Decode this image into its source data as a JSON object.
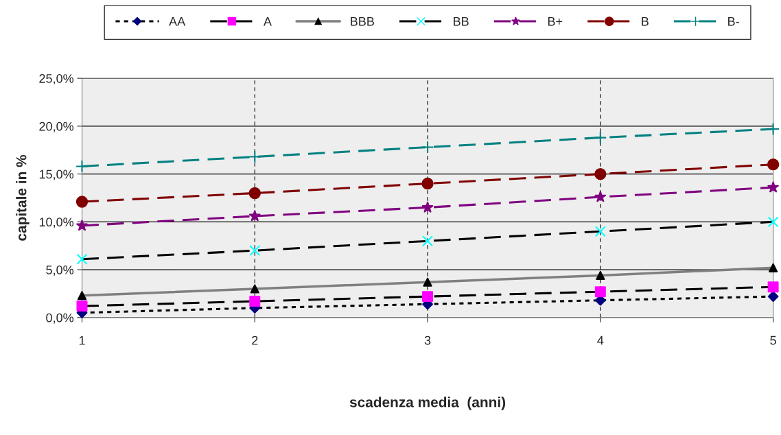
{
  "chart_data": {
    "type": "line",
    "xlabel": "scadenza media  (anni)",
    "ylabel": "capitale in %",
    "x": [
      1,
      2,
      3,
      4,
      5
    ],
    "xlim": [
      1,
      5
    ],
    "xticks": [
      1,
      2,
      3,
      4,
      5
    ],
    "ylim": [
      0,
      25
    ],
    "yticks": [
      {
        "value": 0,
        "label": "0,0%"
      },
      {
        "value": 5,
        "label": "5,0%"
      },
      {
        "value": 10,
        "label": "10,0%"
      },
      {
        "value": 15,
        "label": "15,0%"
      },
      {
        "value": 20,
        "label": "20,0%"
      },
      {
        "value": 25,
        "label": "25,0%"
      }
    ],
    "grid": true,
    "legend": "top",
    "series": [
      {
        "name": "AA",
        "color": "#000000",
        "colors": [
          "#000080",
          "#000080",
          "#000080",
          "#000080",
          "#000080"
        ],
        "marker": "diamond",
        "line_style": "dotted",
        "values": [
          0.5,
          1.0,
          1.4,
          1.8,
          2.2
        ]
      },
      {
        "name": "A",
        "color": "#000000",
        "colors": [
          "#ff00ff",
          "#ff00ff",
          "#ff00ff",
          "#ff00ff",
          "#ff00ff"
        ],
        "marker": "square",
        "line_style": "dashed",
        "values": [
          1.2,
          1.7,
          2.2,
          2.7,
          3.2
        ]
      },
      {
        "name": "BBB",
        "color": "#808080",
        "colors": [
          "#000000",
          "#000000",
          "#000000",
          "#000000",
          "#000000"
        ],
        "marker": "triangle",
        "line_style": "solid",
        "values": [
          2.3,
          3.0,
          3.7,
          4.4,
          5.2
        ]
      },
      {
        "name": "BB",
        "color": "#000000",
        "colors": [
          "#00ffff",
          "#00ffff",
          "#00ffff",
          "#00ffff",
          "#00ffff"
        ],
        "marker": "cross",
        "line_style": "dashed",
        "values": [
          6.1,
          7.0,
          8.0,
          9.0,
          10.0
        ]
      },
      {
        "name": "B+",
        "color": "#800080",
        "colors": [
          "#800080",
          "#800080",
          "#800080",
          "#800080",
          "#800080"
        ],
        "marker": "star",
        "line_style": "dashed",
        "values": [
          9.6,
          10.6,
          11.5,
          12.6,
          13.6
        ]
      },
      {
        "name": "B",
        "color": "#800000",
        "colors": [
          "#800000",
          "#800000",
          "#800000",
          "#800000",
          "#800000"
        ],
        "marker": "circle",
        "line_style": "dashed",
        "values": [
          12.1,
          13.0,
          14.0,
          15.0,
          16.0
        ]
      },
      {
        "name": "B-",
        "color": "#008080",
        "colors": [
          "#008080",
          "#008080",
          "#008080",
          "#008080",
          "#008080"
        ],
        "marker": "plus",
        "line_style": "dashed",
        "values": [
          15.8,
          16.8,
          17.8,
          18.8,
          19.7
        ]
      }
    ]
  }
}
